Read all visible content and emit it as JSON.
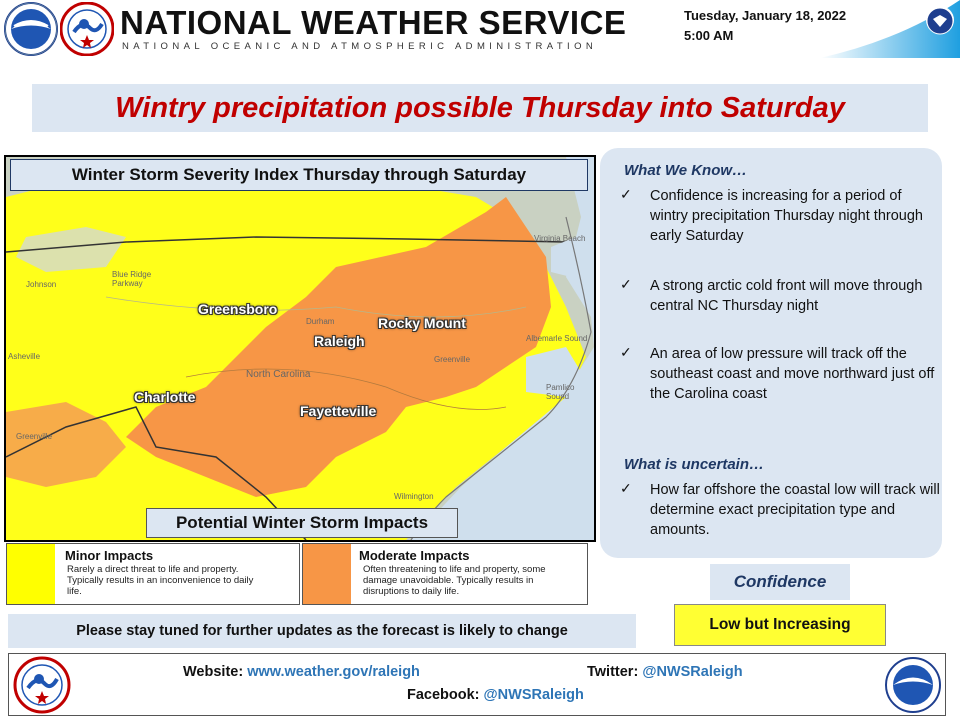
{
  "header": {
    "agency": "NATIONAL WEATHER SERVICE",
    "subtitle": "NATIONAL OCEANIC AND ATMOSPHERIC ADMINISTRATION",
    "date": "Tuesday, January 18, 2022",
    "time": "5:00 AM"
  },
  "headline": "Wintry precipitation possible Thursday into Saturday",
  "map": {
    "title": "Winter Storm Severity Index Thursday through Saturday",
    "cities": [
      "Greensboro",
      "Rocky Mount",
      "Raleigh",
      "Charlotte",
      "Fayetteville"
    ],
    "labels": [
      "Virginia Beach",
      "Blue Ridge Parkway",
      "Johnson",
      "Asheville",
      "Durham",
      "North Carolina",
      "Greenville",
      "Greenville",
      "Albemarle Sound",
      "Pamlico Sound",
      "Wilmington"
    ],
    "impacts_title": "Potential Winter Storm Impacts"
  },
  "legend": [
    {
      "heading": "Minor Impacts",
      "text": "Rarely a direct threat to life and property. Typically results in an inconvenience to daily life.",
      "color": "#ffff00"
    },
    {
      "heading": "Moderate Impacts",
      "text": "Often threatening to life and property, some damage unavoidable. Typically results in disruptions to daily life.",
      "color": "#f79646"
    }
  ],
  "notice": "Please stay tuned for further updates as the forecast is likely to change",
  "know": {
    "heading": "What We Know…",
    "items": [
      "Confidence is increasing for a period of wintry precipitation Thursday night through early Saturday",
      "A strong arctic cold front will move through central NC Thursday night",
      "An area of low pressure will track off the southeast coast and move northward just off the Carolina coast"
    ],
    "uncertain_heading": "What is uncertain…",
    "uncertain_items": [
      "How far offshore the coastal low will track will determine exact precipitation type and amounts."
    ]
  },
  "confidence": {
    "label": "Confidence",
    "value": "Low but Increasing"
  },
  "footer": {
    "website_label": "Website:",
    "website": "www.weather.gov/raleigh",
    "twitter_label": "Twitter:",
    "twitter": "@NWSRaleigh",
    "facebook_label": "Facebook:",
    "facebook": "@NWSRaleigh"
  },
  "icons": [
    "noaa-logo-icon",
    "nws-logo-icon",
    "dept-commerce-seal-icon"
  ]
}
